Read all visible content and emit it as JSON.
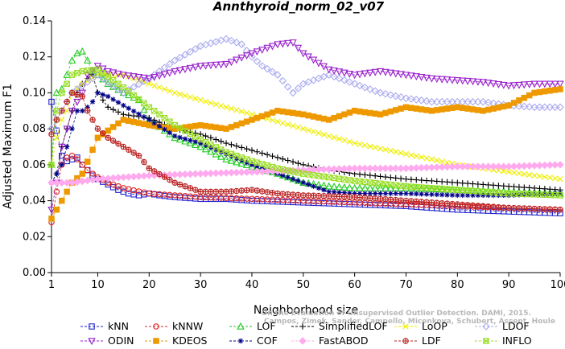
{
  "chart_data": {
    "type": "line",
    "title": "Annthyroid_norm_02_v07",
    "xlabel": "Neighborhood size",
    "ylabel": "Adjusted Maximum F1",
    "xlim": [
      1,
      100
    ],
    "ylim": [
      0,
      0.14
    ],
    "x_ticks": [
      1,
      10,
      20,
      30,
      40,
      50,
      60,
      70,
      80,
      90,
      100
    ],
    "y_ticks": [
      0.0,
      0.02,
      0.04,
      0.06,
      0.08,
      0.1,
      0.12,
      0.14
    ],
    "y_tick_labels": [
      "0.00",
      "0.02",
      "0.04",
      "0.06",
      "0.08",
      "0.10",
      "0.12",
      "0.14"
    ],
    "legend_position": "bottom",
    "series": [
      {
        "name": "kNN",
        "color": "#2222cc",
        "marker": "square",
        "points": [
          [
            1,
            0.095
          ],
          [
            2,
            0.079
          ],
          [
            3,
            0.065
          ],
          [
            4,
            0.062
          ],
          [
            5,
            0.063
          ],
          [
            6,
            0.064
          ],
          [
            7,
            0.06
          ],
          [
            8,
            0.057
          ],
          [
            9,
            0.054
          ],
          [
            10,
            0.052
          ],
          [
            12,
            0.049
          ],
          [
            14,
            0.046
          ],
          [
            16,
            0.044
          ],
          [
            18,
            0.043
          ],
          [
            20,
            0.044
          ],
          [
            22,
            0.043
          ],
          [
            25,
            0.042
          ],
          [
            30,
            0.041
          ],
          [
            35,
            0.041
          ],
          [
            40,
            0.04
          ],
          [
            50,
            0.039
          ],
          [
            60,
            0.038
          ],
          [
            70,
            0.037
          ],
          [
            80,
            0.035
          ],
          [
            90,
            0.034
          ],
          [
            100,
            0.033
          ]
        ]
      },
      {
        "name": "kNNW",
        "color": "#dd2222",
        "marker": "circle",
        "points": [
          [
            1,
            0.028
          ],
          [
            2,
            0.045
          ],
          [
            3,
            0.06
          ],
          [
            4,
            0.064
          ],
          [
            5,
            0.065
          ],
          [
            6,
            0.063
          ],
          [
            7,
            0.06
          ],
          [
            8,
            0.057
          ],
          [
            10,
            0.053
          ],
          [
            12,
            0.05
          ],
          [
            15,
            0.047
          ],
          [
            20,
            0.044
          ],
          [
            25,
            0.043
          ],
          [
            30,
            0.042
          ],
          [
            40,
            0.041
          ],
          [
            50,
            0.04
          ],
          [
            60,
            0.039
          ],
          [
            70,
            0.038
          ],
          [
            80,
            0.037
          ],
          [
            90,
            0.036
          ],
          [
            100,
            0.035
          ]
        ]
      },
      {
        "name": "LOF",
        "color": "#22cc22",
        "marker": "triangle-up",
        "points": [
          [
            1,
            0.06
          ],
          [
            2,
            0.1
          ],
          [
            3,
            0.102
          ],
          [
            4,
            0.11
          ],
          [
            5,
            0.118
          ],
          [
            6,
            0.122
          ],
          [
            7,
            0.123
          ],
          [
            8,
            0.118
          ],
          [
            9,
            0.112
          ],
          [
            10,
            0.11
          ],
          [
            12,
            0.105
          ],
          [
            15,
            0.1
          ],
          [
            18,
            0.096
          ],
          [
            20,
            0.085
          ],
          [
            25,
            0.075
          ],
          [
            30,
            0.07
          ],
          [
            35,
            0.063
          ],
          [
            40,
            0.059
          ],
          [
            45,
            0.055
          ],
          [
            50,
            0.05
          ],
          [
            55,
            0.048
          ],
          [
            60,
            0.047
          ],
          [
            65,
            0.047
          ],
          [
            70,
            0.047
          ],
          [
            80,
            0.046
          ],
          [
            90,
            0.045
          ],
          [
            100,
            0.044
          ]
        ]
      },
      {
        "name": "SimplifiedLOF",
        "color": "#000000",
        "marker": "plus",
        "points": [
          [
            1,
            0.05
          ],
          [
            2,
            0.055
          ],
          [
            3,
            0.07
          ],
          [
            4,
            0.08
          ],
          [
            5,
            0.09
          ],
          [
            6,
            0.1
          ],
          [
            7,
            0.105
          ],
          [
            8,
            0.108
          ],
          [
            9,
            0.11
          ],
          [
            10,
            0.1
          ],
          [
            12,
            0.092
          ],
          [
            15,
            0.088
          ],
          [
            20,
            0.086
          ],
          [
            25,
            0.08
          ],
          [
            30,
            0.077
          ],
          [
            35,
            0.072
          ],
          [
            40,
            0.068
          ],
          [
            45,
            0.064
          ],
          [
            50,
            0.06
          ],
          [
            55,
            0.057
          ],
          [
            60,
            0.055
          ],
          [
            70,
            0.052
          ],
          [
            80,
            0.05
          ],
          [
            90,
            0.048
          ],
          [
            100,
            0.046
          ]
        ]
      },
      {
        "name": "LoOP",
        "color": "#eeee00",
        "marker": "x",
        "points": [
          [
            1,
            0.06
          ],
          [
            2,
            0.075
          ],
          [
            3,
            0.085
          ],
          [
            4,
            0.09
          ],
          [
            5,
            0.1
          ],
          [
            7,
            0.105
          ],
          [
            10,
            0.11
          ],
          [
            15,
            0.11
          ],
          [
            20,
            0.105
          ],
          [
            25,
            0.1
          ],
          [
            30,
            0.096
          ],
          [
            35,
            0.092
          ],
          [
            40,
            0.088
          ],
          [
            45,
            0.084
          ],
          [
            50,
            0.08
          ],
          [
            55,
            0.076
          ],
          [
            60,
            0.072
          ],
          [
            70,
            0.066
          ],
          [
            80,
            0.06
          ],
          [
            90,
            0.056
          ],
          [
            100,
            0.052
          ]
        ]
      },
      {
        "name": "LDOF",
        "color": "#aaaaee",
        "marker": "diamond",
        "points": [
          [
            1,
            0.08
          ],
          [
            3,
            0.09
          ],
          [
            5,
            0.1
          ],
          [
            10,
            0.11
          ],
          [
            15,
            0.1
          ],
          [
            20,
            0.108
          ],
          [
            25,
            0.118
          ],
          [
            30,
            0.126
          ],
          [
            35,
            0.13
          ],
          [
            38,
            0.127
          ],
          [
            40,
            0.12
          ],
          [
            42,
            0.115
          ],
          [
            45,
            0.11
          ],
          [
            48,
            0.1
          ],
          [
            50,
            0.105
          ],
          [
            55,
            0.11
          ],
          [
            60,
            0.105
          ],
          [
            65,
            0.1
          ],
          [
            70,
            0.097
          ],
          [
            75,
            0.095
          ],
          [
            80,
            0.095
          ],
          [
            85,
            0.095
          ],
          [
            90,
            0.093
          ],
          [
            95,
            0.092
          ],
          [
            100,
            0.092
          ]
        ]
      },
      {
        "name": "ODIN",
        "color": "#9922cc",
        "marker": "triangle-down",
        "points": [
          [
            1,
            0.035
          ],
          [
            2,
            0.05
          ],
          [
            3,
            0.07
          ],
          [
            4,
            0.08
          ],
          [
            5,
            0.09
          ],
          [
            6,
            0.095
          ],
          [
            7,
            0.1
          ],
          [
            8,
            0.11
          ],
          [
            10,
            0.115
          ],
          [
            12,
            0.112
          ],
          [
            15,
            0.11
          ],
          [
            20,
            0.108
          ],
          [
            25,
            0.112
          ],
          [
            30,
            0.115
          ],
          [
            35,
            0.116
          ],
          [
            40,
            0.122
          ],
          [
            45,
            0.127
          ],
          [
            48,
            0.128
          ],
          [
            50,
            0.122
          ],
          [
            55,
            0.113
          ],
          [
            60,
            0.11
          ],
          [
            65,
            0.112
          ],
          [
            70,
            0.11
          ],
          [
            75,
            0.108
          ],
          [
            80,
            0.107
          ],
          [
            85,
            0.106
          ],
          [
            90,
            0.104
          ],
          [
            95,
            0.105
          ],
          [
            100,
            0.105
          ]
        ]
      },
      {
        "name": "KDEOS",
        "color": "#ee9900",
        "marker": "square-filled",
        "points": [
          [
            1,
            0.03
          ],
          [
            2,
            0.035
          ],
          [
            3,
            0.04
          ],
          [
            4,
            0.045
          ],
          [
            5,
            0.05
          ],
          [
            7,
            0.055
          ],
          [
            10,
            0.075
          ],
          [
            15,
            0.085
          ],
          [
            20,
            0.082
          ],
          [
            25,
            0.08
          ],
          [
            30,
            0.082
          ],
          [
            35,
            0.08
          ],
          [
            40,
            0.085
          ],
          [
            45,
            0.09
          ],
          [
            50,
            0.088
          ],
          [
            55,
            0.085
          ],
          [
            60,
            0.09
          ],
          [
            65,
            0.088
          ],
          [
            70,
            0.092
          ],
          [
            75,
            0.09
          ],
          [
            80,
            0.092
          ],
          [
            85,
            0.09
          ],
          [
            90,
            0.093
          ],
          [
            95,
            0.1
          ],
          [
            100,
            0.102
          ]
        ]
      },
      {
        "name": "COF",
        "color": "#000088",
        "marker": "asterisk",
        "points": [
          [
            1,
            0.05
          ],
          [
            2,
            0.055
          ],
          [
            3,
            0.06
          ],
          [
            4,
            0.07
          ],
          [
            5,
            0.08
          ],
          [
            6,
            0.09
          ],
          [
            7,
            0.09
          ],
          [
            8,
            0.092
          ],
          [
            9,
            0.095
          ],
          [
            10,
            0.1
          ],
          [
            12,
            0.098
          ],
          [
            15,
            0.093
          ],
          [
            20,
            0.085
          ],
          [
            25,
            0.076
          ],
          [
            30,
            0.072
          ],
          [
            35,
            0.066
          ],
          [
            40,
            0.06
          ],
          [
            45,
            0.055
          ],
          [
            50,
            0.05
          ],
          [
            55,
            0.045
          ],
          [
            60,
            0.044
          ],
          [
            70,
            0.044
          ],
          [
            80,
            0.043
          ],
          [
            90,
            0.043
          ],
          [
            100,
            0.044
          ]
        ]
      },
      {
        "name": "FastABOD",
        "color": "#ffaaee",
        "marker": "diamond-filled",
        "points": [
          [
            1,
            0.05
          ],
          [
            3,
            0.05
          ],
          [
            5,
            0.05
          ],
          [
            10,
            0.052
          ],
          [
            15,
            0.053
          ],
          [
            20,
            0.054
          ],
          [
            30,
            0.055
          ],
          [
            40,
            0.056
          ],
          [
            50,
            0.057
          ],
          [
            60,
            0.058
          ],
          [
            70,
            0.058
          ],
          [
            80,
            0.059
          ],
          [
            90,
            0.059
          ],
          [
            100,
            0.06
          ]
        ]
      },
      {
        "name": "LDF",
        "color": "#bb2222",
        "marker": "circle-plus",
        "points": [
          [
            1,
            0.077
          ],
          [
            2,
            0.085
          ],
          [
            3,
            0.09
          ],
          [
            4,
            0.095
          ],
          [
            5,
            0.1
          ],
          [
            6,
            0.099
          ],
          [
            7,
            0.098
          ],
          [
            8,
            0.09
          ],
          [
            10,
            0.08
          ],
          [
            12,
            0.075
          ],
          [
            15,
            0.07
          ],
          [
            18,
            0.065
          ],
          [
            20,
            0.058
          ],
          [
            25,
            0.05
          ],
          [
            30,
            0.045
          ],
          [
            35,
            0.045
          ],
          [
            40,
            0.046
          ],
          [
            45,
            0.044
          ],
          [
            50,
            0.043
          ],
          [
            60,
            0.042
          ],
          [
            70,
            0.04
          ],
          [
            80,
            0.038
          ],
          [
            90,
            0.036
          ],
          [
            100,
            0.035
          ]
        ]
      },
      {
        "name": "INFLO",
        "color": "#99dd22",
        "marker": "square-x",
        "points": [
          [
            1,
            0.06
          ],
          [
            2,
            0.09
          ],
          [
            3,
            0.1
          ],
          [
            5,
            0.11
          ],
          [
            7,
            0.112
          ],
          [
            10,
            0.113
          ],
          [
            15,
            0.103
          ],
          [
            20,
            0.092
          ],
          [
            25,
            0.082
          ],
          [
            30,
            0.074
          ],
          [
            35,
            0.067
          ],
          [
            40,
            0.062
          ],
          [
            45,
            0.058
          ],
          [
            50,
            0.055
          ],
          [
            60,
            0.051
          ],
          [
            70,
            0.048
          ],
          [
            80,
            0.046
          ],
          [
            90,
            0.044
          ],
          [
            100,
            0.043
          ]
        ]
      }
    ],
    "legend_rows": [
      [
        "kNN",
        "kNNW",
        "LOF",
        "SimplifiedLOF",
        "LoOP",
        "LDOF"
      ],
      [
        "ODIN",
        "KDEOS",
        "COF",
        "FastABOD",
        "LDF",
        "INFLO"
      ]
    ],
    "watermark": [
      "Campos, Zimek, Sander, Campello, Micenkova, Schubert, Assent, Houle",
      "On the Evaluation of Unsupervised Outlier Detection. DAMI, 2015."
    ]
  }
}
